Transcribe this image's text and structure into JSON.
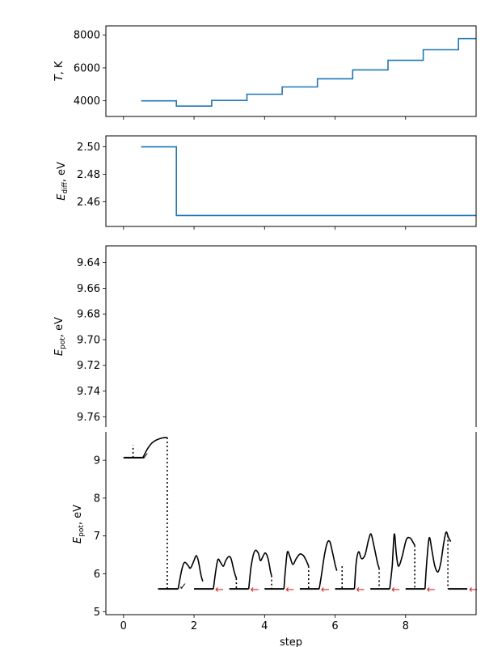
{
  "chart_data": [
    {
      "type": "line",
      "panel": "temperature",
      "ylabel_symbol": "T",
      "ylabel_unit": ", K",
      "xlim": [
        -0.5,
        10.0
      ],
      "ylim": [
        3050,
        8550
      ],
      "yticks": [
        4000,
        6000,
        8000
      ],
      "ytick_labels": [
        "4000",
        "6000",
        "8000"
      ],
      "color": "#1f77b4",
      "steps": [
        {
          "x0": 0.5,
          "x1": 1.5,
          "y": 4000
        },
        {
          "x0": 1.5,
          "x1": 2.5,
          "y": 3680
        },
        {
          "x0": 2.5,
          "x1": 3.5,
          "y": 4020
        },
        {
          "x0": 3.5,
          "x1": 4.5,
          "y": 4400
        },
        {
          "x0": 4.5,
          "x1": 5.5,
          "y": 4840
        },
        {
          "x0": 5.5,
          "x1": 6.5,
          "y": 5340
        },
        {
          "x0": 6.5,
          "x1": 7.5,
          "y": 5880
        },
        {
          "x0": 7.5,
          "x1": 8.5,
          "y": 6460
        },
        {
          "x0": 8.5,
          "x1": 9.5,
          "y": 7100
        },
        {
          "x0": 9.5,
          "x1": 10.0,
          "y": 7780
        }
      ]
    },
    {
      "type": "line",
      "panel": "diffusion-barrier",
      "ylabel_symbol": "E",
      "ylabel_sub": "diff",
      "ylabel_unit": ", eV",
      "xlim": [
        -0.5,
        10.0
      ],
      "ylim": [
        2.442,
        2.508
      ],
      "yticks": [
        2.46,
        2.48,
        2.5
      ],
      "ytick_labels": [
        "2.46",
        "2.48",
        "2.50"
      ],
      "color": "#1f77b4",
      "steps": [
        {
          "x0": 0.5,
          "x1": 1.5,
          "y": 2.5
        },
        {
          "x0": 1.5,
          "x1": 10.0,
          "y": 2.45
        }
      ]
    },
    {
      "type": "line",
      "panel": "potential-energy-upper",
      "ylabel_symbol": "E",
      "ylabel_sub": "pot",
      "ylabel_unit": ", eV",
      "xlim": [
        -0.5,
        10.0
      ],
      "ylim": [
        9.768,
        9.627
      ],
      "yticks": [
        9.64,
        9.66,
        9.68,
        9.7,
        9.72,
        9.74,
        9.76
      ],
      "ytick_labels": [
        "9.64",
        "9.66",
        "9.68",
        "9.70",
        "9.72",
        "9.74",
        "9.76"
      ]
    },
    {
      "type": "line",
      "panel": "potential-energy-lower",
      "ylabel_symbol": "E",
      "ylabel_sub": "pot",
      "ylabel_unit": ", eV",
      "xlabel": "step",
      "xlim": [
        -0.5,
        10.0
      ],
      "ylim": [
        4.92,
        9.75
      ],
      "yticks": [
        5,
        6,
        7,
        8,
        9
      ],
      "ytick_labels": [
        "5",
        "6",
        "7",
        "8",
        "9"
      ],
      "xticks": [
        0,
        2,
        4,
        6,
        8
      ],
      "xtick_labels": [
        "0",
        "2",
        "4",
        "6",
        "8"
      ],
      "first_segment": {
        "minimum": {
          "x0": 0.0,
          "x1": 0.55,
          "y": 9.07
        },
        "marker": {
          "x": 0.27,
          "y0": 9.07,
          "y1": 9.4
        },
        "profile": [
          [
            0.55,
            9.07
          ],
          [
            0.62,
            9.2
          ],
          [
            0.7,
            9.33
          ],
          [
            0.8,
            9.45
          ],
          [
            0.9,
            9.52
          ],
          [
            1.0,
            9.56
          ],
          [
            1.1,
            9.59
          ],
          [
            1.2,
            9.6
          ],
          [
            1.24,
            9.6
          ]
        ],
        "drop": {
          "x": 1.24,
          "y0": 9.6,
          "y1": 5.6
        }
      },
      "segments": [
        {
          "min": [
            0.98,
            1.55,
            5.6
          ],
          "profile": [
            [
              1.55,
              5.6
            ],
            [
              1.65,
              6.1
            ],
            [
              1.73,
              6.3
            ],
            [
              1.83,
              6.22
            ],
            [
              1.9,
              6.15
            ],
            [
              2.0,
              6.35
            ],
            [
              2.06,
              6.48
            ],
            [
              2.12,
              6.35
            ],
            [
              2.2,
              5.95
            ],
            [
              2.25,
              5.8
            ]
          ],
          "drop": null,
          "mark": "check"
        },
        {
          "min": [
            2.0,
            2.55,
            5.6
          ],
          "profile": [
            [
              2.55,
              5.6
            ],
            [
              2.62,
              6.1
            ],
            [
              2.68,
              6.38
            ],
            [
              2.75,
              6.3
            ],
            [
              2.83,
              6.2
            ],
            [
              2.9,
              6.35
            ],
            [
              2.98,
              6.45
            ],
            [
              3.05,
              6.4
            ],
            [
              3.14,
              6.05
            ],
            [
              3.2,
              5.88
            ]
          ],
          "drop": {
            "x": 3.2,
            "y0": 5.88,
            "y1": 5.6
          },
          "mark": "arrow"
        },
        {
          "min": [
            3.0,
            3.55,
            5.6
          ],
          "profile": [
            [
              3.55,
              5.6
            ],
            [
              3.62,
              6.2
            ],
            [
              3.72,
              6.6
            ],
            [
              3.82,
              6.55
            ],
            [
              3.88,
              6.35
            ],
            [
              3.95,
              6.45
            ],
            [
              4.02,
              6.55
            ],
            [
              4.1,
              6.4
            ],
            [
              4.17,
              6.05
            ],
            [
              4.2,
              5.95
            ]
          ],
          "drop": {
            "x": 4.2,
            "y0": 5.95,
            "y1": 5.6
          },
          "mark": "arrow"
        },
        {
          "min": [
            4.0,
            4.55,
            5.6
          ],
          "profile": [
            [
              4.55,
              5.6
            ],
            [
              4.6,
              6.2
            ],
            [
              4.65,
              6.58
            ],
            [
              4.72,
              6.45
            ],
            [
              4.8,
              6.25
            ],
            [
              4.9,
              6.4
            ],
            [
              5.0,
              6.52
            ],
            [
              5.1,
              6.48
            ],
            [
              5.18,
              6.35
            ],
            [
              5.25,
              6.2
            ]
          ],
          "drop": {
            "x": 5.25,
            "y0": 6.2,
            "y1": 5.6
          },
          "mark": "arrow"
        },
        {
          "min": [
            5.0,
            5.55,
            5.6
          ],
          "profile": [
            [
              5.55,
              5.6
            ],
            [
              5.62,
              6.0
            ],
            [
              5.7,
              6.5
            ],
            [
              5.78,
              6.82
            ],
            [
              5.85,
              6.85
            ],
            [
              5.92,
              6.6
            ],
            [
              6.0,
              6.25
            ],
            [
              6.05,
              6.08
            ]
          ],
          "drop": {
            "x": 6.2,
            "y0": 6.2,
            "y1": 5.6
          },
          "mark": "arrow"
        },
        {
          "min": [
            6.0,
            6.55,
            5.6
          ],
          "profile": [
            [
              6.55,
              5.6
            ],
            [
              6.6,
              6.3
            ],
            [
              6.67,
              6.58
            ],
            [
              6.75,
              6.4
            ],
            [
              6.85,
              6.5
            ],
            [
              6.95,
              6.9
            ],
            [
              7.02,
              7.05
            ],
            [
              7.1,
              6.75
            ],
            [
              7.2,
              6.3
            ],
            [
              7.25,
              6.15
            ]
          ],
          "drop": {
            "x": 7.25,
            "y0": 6.15,
            "y1": 5.6
          },
          "mark": "arrow"
        },
        {
          "min": [
            7.0,
            7.55,
            5.6
          ],
          "profile": [
            [
              7.55,
              5.6
            ],
            [
              7.62,
              6.2
            ],
            [
              7.68,
              7.05
            ],
            [
              7.74,
              6.5
            ],
            [
              7.8,
              6.2
            ],
            [
              7.9,
              6.45
            ],
            [
              8.02,
              6.9
            ],
            [
              8.12,
              6.95
            ],
            [
              8.2,
              6.85
            ],
            [
              8.26,
              6.75
            ]
          ],
          "drop": {
            "x": 8.26,
            "y0": 6.75,
            "y1": 5.6
          },
          "mark": "arrow"
        },
        {
          "min": [
            8.0,
            8.55,
            5.6
          ],
          "profile": [
            [
              8.55,
              5.6
            ],
            [
              8.6,
              6.3
            ],
            [
              8.67,
              6.95
            ],
            [
              8.75,
              6.6
            ],
            [
              8.83,
              6.2
            ],
            [
              8.92,
              6.05
            ],
            [
              9.0,
              6.3
            ],
            [
              9.08,
              6.8
            ],
            [
              9.15,
              7.1
            ],
            [
              9.22,
              6.95
            ],
            [
              9.28,
              6.85
            ]
          ],
          "drop": {
            "x": 9.2,
            "y0": 7.0,
            "y1": 5.6
          },
          "mark": "arrow"
        },
        {
          "min": [
            9.2,
            9.75,
            5.6
          ],
          "profile": [],
          "drop": null,
          "mark": "arrow"
        }
      ],
      "arrow_glyph": "←",
      "check_glyph": "✓"
    }
  ]
}
